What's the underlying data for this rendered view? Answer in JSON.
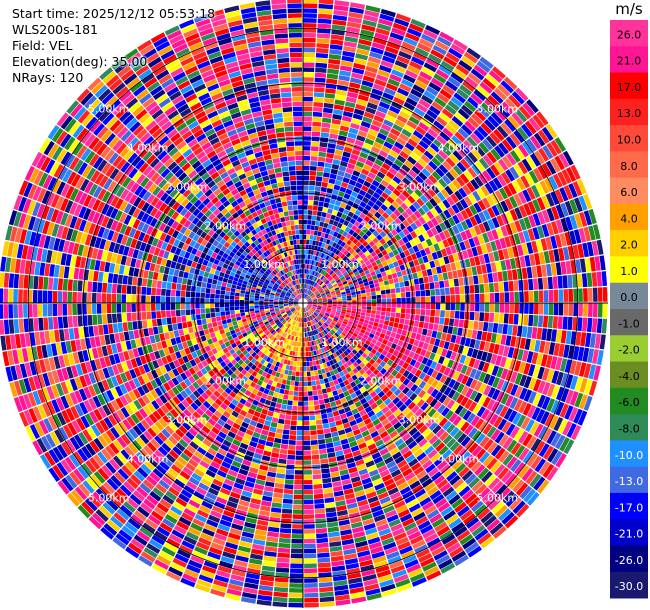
{
  "header": {
    "start_time": "Start time: 2025/12/12 05:53:18",
    "instrument": "WLS200s-181",
    "field": "Field: VEL",
    "elevation": "Elevation(deg): 35.00",
    "nrays": "NRays: 120"
  },
  "chart_data": {
    "type": "heatmap",
    "projection": "polar (PPI scan)",
    "field": "VEL",
    "elevation_deg": 35.0,
    "n_rays": 120,
    "range_rings": [
      "1.00km",
      "2.00km",
      "3.00km",
      "4.00km",
      "5.00km"
    ],
    "range_ring_values_km": [
      1,
      2,
      3,
      4,
      5
    ],
    "colorbar": {
      "unit": "m/s",
      "ticks": [
        "26.0",
        "21.0",
        "17.0",
        "13.0",
        "10.0",
        "8.0",
        "6.0",
        "4.0",
        "2.0",
        "1.0",
        "0.0",
        "-1.0",
        "-2.0",
        "-4.0",
        "-6.0",
        "-8.0",
        "-10.0",
        "-13.0",
        "-17.0",
        "-21.0",
        "-26.0",
        "-30.0"
      ],
      "colors": [
        "#ff3399",
        "#ff1493",
        "#ff0000",
        "#ff2020",
        "#ff4a3a",
        "#ff6a4a",
        "#ff8c60",
        "#ffa000",
        "#ffd000",
        "#ffff00",
        "#778899",
        "#696969",
        "#9acd32",
        "#6b8e23",
        "#228b22",
        "#2e8b57",
        "#1e90ff",
        "#4169e1",
        "#0000ff",
        "#0000cd",
        "#000080",
        "#191970"
      ]
    }
  }
}
